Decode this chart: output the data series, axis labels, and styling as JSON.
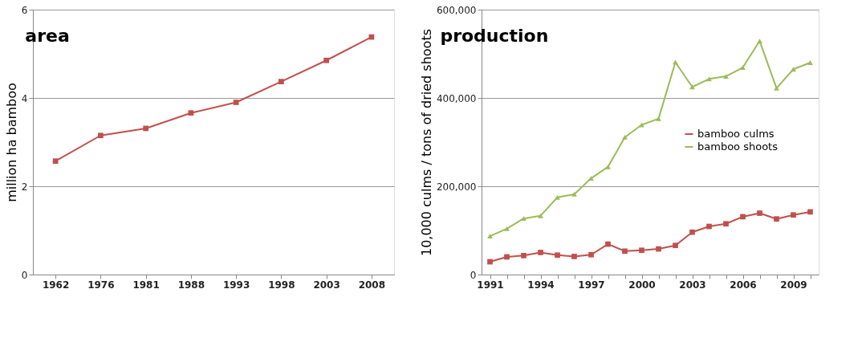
{
  "chart_data": [
    {
      "type": "line",
      "title": "area",
      "ylabel": "million ha bamboo",
      "categories": [
        "1962",
        "1976",
        "1981",
        "1988",
        "1993",
        "1998",
        "2003",
        "2008"
      ],
      "ylim": [
        0,
        6
      ],
      "yticks": [
        0,
        2,
        4,
        6
      ],
      "grid": "y",
      "legend": false,
      "marker": "square",
      "series": [
        {
          "color": "#c0504d",
          "values": [
            2.57,
            3.15,
            3.31,
            3.66,
            3.9,
            4.37,
            4.85,
            5.38
          ]
        }
      ]
    },
    {
      "type": "line",
      "title": "production",
      "ylabel": "10,000 culms / tons of dried shoots",
      "categories": [
        "1991",
        null,
        null,
        "1994",
        null,
        null,
        "1997",
        null,
        null,
        "2000",
        null,
        null,
        "2003",
        null,
        null,
        "2006",
        null,
        null,
        "2009",
        null
      ],
      "ylim": [
        0,
        600000
      ],
      "yticks": [
        0,
        {
          "value": 200000,
          "label": "200,000"
        },
        {
          "value": 400000,
          "label": "400,000"
        },
        {
          "value": 600000,
          "label": "600,000"
        }
      ],
      "grid": "y",
      "legend": "right",
      "series": [
        {
          "name": "bamboo culms",
          "color": "#c0504d",
          "marker": "square",
          "values": [
            29000,
            40000,
            43000,
            50000,
            44000,
            41000,
            45000,
            69000,
            53000,
            55000,
            58000,
            66000,
            96000,
            109000,
            115000,
            131000,
            139000,
            126000,
            135000,
            142000
          ]
        },
        {
          "name": "bamboo shoots",
          "color": "#9bbb59",
          "marker": "triangle",
          "values": [
            87000,
            104000,
            127000,
            133000,
            175000,
            182000,
            218000,
            244000,
            311000,
            339000,
            353000,
            481000,
            425000,
            443000,
            449000,
            469000,
            529000,
            422000,
            465000,
            480000
          ]
        }
      ]
    }
  ]
}
